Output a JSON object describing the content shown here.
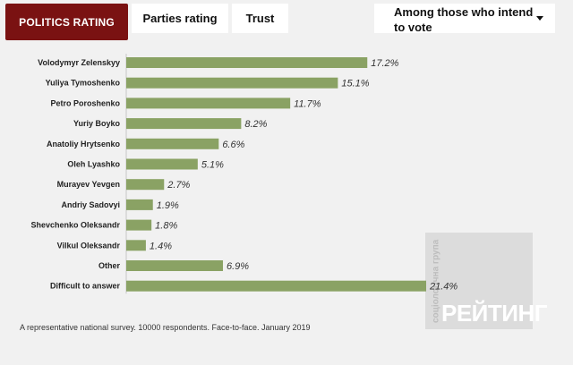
{
  "tabs": {
    "active": "POLITICS RATING",
    "parties": "Parties rating",
    "trust": "Trust"
  },
  "filter": {
    "selected": "Among those who intend to vote"
  },
  "chart_data": {
    "type": "bar",
    "orientation": "horizontal",
    "categories": [
      "Volodymyr Zelenskyy",
      "Yuliya Tymoshenko",
      "Petro Poroshenko",
      "Yuriy Boyko",
      "Anatoliy Hrytsenko",
      "Oleh Lyashko",
      "Murayev Yevgen",
      "Andriy Sadovyi",
      "Shevchenko Oleksandr",
      "Vilkul Oleksandr",
      "Other",
      "Difficult to answer"
    ],
    "values": [
      17.2,
      15.1,
      11.7,
      8.2,
      6.6,
      5.1,
      2.7,
      1.9,
      1.8,
      1.4,
      6.9,
      21.4
    ],
    "value_labels": [
      "17.2%",
      "15.1%",
      "11.7%",
      "8.2%",
      "6.6%",
      "5.1%",
      "2.7%",
      "1.9%",
      "1.8%",
      "1.4%",
      "6.9%",
      "21.4%"
    ],
    "bar_color": "#8aa264",
    "xlim": [
      0,
      21.4
    ]
  },
  "footnote": "A representative national survey. 10000 respondents. Face-to-face. January 2019",
  "watermark": {
    "vertical": "соціологічна група",
    "brand": "РЕЙТИНГ"
  },
  "colors": {
    "accent": "#7a1212",
    "background": "#f1f1f1"
  }
}
